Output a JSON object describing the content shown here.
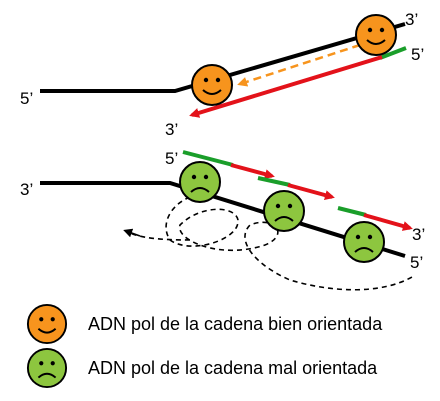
{
  "top": {
    "label_3_right": "3’",
    "label_5_right": "5’",
    "label_5_left": "5’",
    "label_3_bottom": "3’"
  },
  "bottom": {
    "label_5_top": "5’",
    "label_3_left": "3’",
    "label_3_right": "3’",
    "label_5_right": "5’"
  },
  "legend": {
    "items": [
      {
        "label": "ADN pol de la cadena bien orientada",
        "face": "happy-face-icon",
        "color": "#f7941d"
      },
      {
        "label": "ADN pol de la cadena mal orientada",
        "face": "sad-face-icon",
        "color": "#8dc63f"
      }
    ]
  },
  "colors": {
    "strand": "#000000",
    "new_strand": "#e3121a",
    "primer": "#1a9e2a",
    "arrow_dashed_orange": "#f7941d",
    "happy_pol": "#f7941d",
    "sad_pol": "#8dc63f"
  }
}
